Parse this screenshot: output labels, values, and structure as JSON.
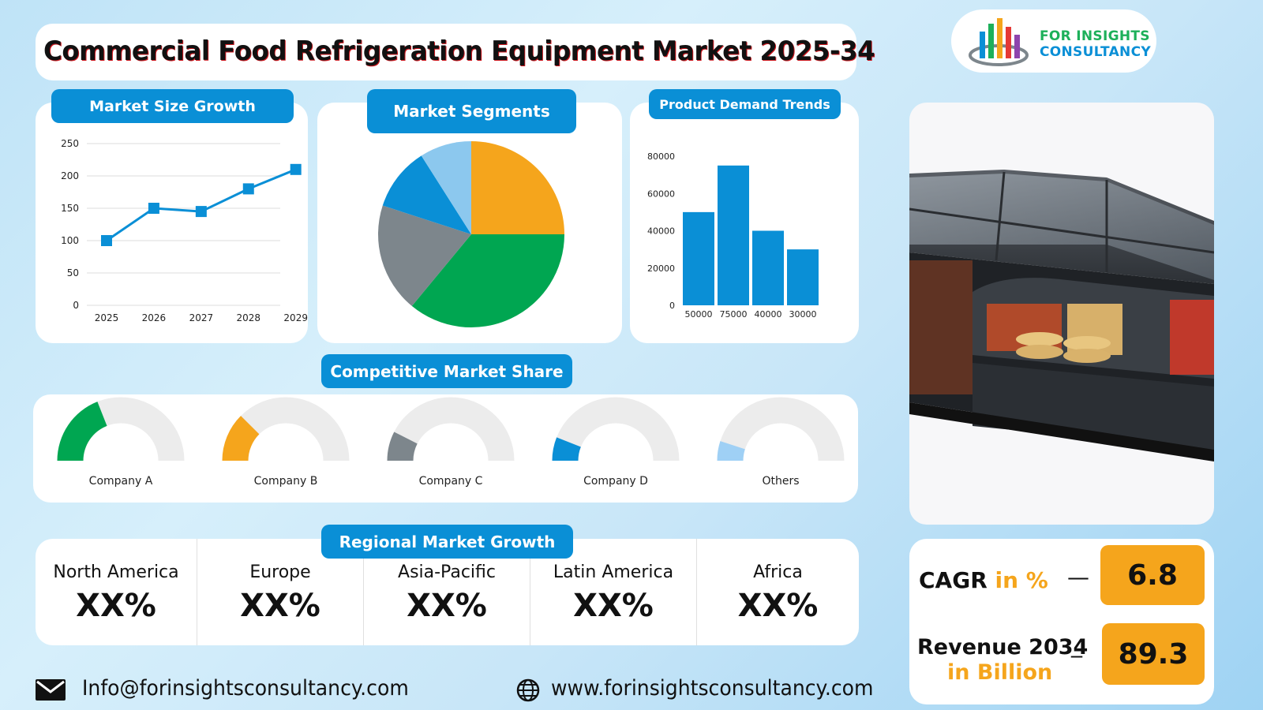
{
  "header": {
    "title": "Commercial Food Refrigeration Equipment Market 2025-34"
  },
  "logo": {
    "line1": "FOR INSIGHTS",
    "line2": "CONSULTANCY",
    "bar_colors": [
      "#0a8fd6",
      "#1db05a",
      "#f5a51c",
      "#e53935",
      "#8e44ad"
    ]
  },
  "panels": {
    "market_size": "Market Size Growth",
    "segments": "Market Segments",
    "demand": "Product Demand Trends",
    "share": "Competitive Market Share",
    "regional": "Regional Market Growth"
  },
  "colors": {
    "accent": "#0a8fd6",
    "orange": "#f5a51c",
    "green": "#00a651",
    "grey": "#7d868c",
    "blue": "#0a8fd6",
    "lightblue": "#8cc8ee",
    "track": "#ececec"
  },
  "chart_data": [
    {
      "type": "line",
      "x": [
        "2025",
        "2026",
        "2027",
        "2028",
        "2029"
      ],
      "values": [
        100,
        150,
        145,
        180,
        210
      ],
      "ylim": [
        0,
        250
      ],
      "yticks": [
        "0",
        "50",
        "100",
        "150",
        "200",
        "250"
      ],
      "color": "#0a8fd6",
      "grid": true
    },
    {
      "type": "pie",
      "slices": [
        {
          "value": 25,
          "color": "#f5a51c"
        },
        {
          "value": 36,
          "color": "#00a651"
        },
        {
          "value": 19,
          "color": "#7d868c"
        },
        {
          "value": 11,
          "color": "#0a8fd6"
        },
        {
          "value": 9,
          "color": "#8cc8ee"
        }
      ]
    },
    {
      "type": "bar",
      "categories": [
        "50000",
        "75000",
        "40000",
        "30000"
      ],
      "values": [
        50000,
        75000,
        40000,
        30000
      ],
      "ylim": [
        0,
        80000
      ],
      "yticks": [
        "0",
        "20000",
        "40000",
        "60000",
        "80000"
      ],
      "color": "#0a8fd6"
    }
  ],
  "share": {
    "companies": [
      {
        "name": "Company A",
        "share": 0.38,
        "color": "#00a651"
      },
      {
        "name": "Company B",
        "share": 0.25,
        "color": "#f5a51c"
      },
      {
        "name": "Company C",
        "share": 0.15,
        "color": "#7d868c"
      },
      {
        "name": "Company D",
        "share": 0.12,
        "color": "#0a8fd6"
      },
      {
        "name": "Others",
        "share": 0.1,
        "color": "#9fd0f5"
      }
    ]
  },
  "regions": [
    {
      "name": "North America",
      "value": "XX%"
    },
    {
      "name": "Europe",
      "value": "XX%"
    },
    {
      "name": "Asia-Pacific",
      "value": "XX%"
    },
    {
      "name": "Latin America",
      "value": "XX%"
    },
    {
      "name": "Africa",
      "value": "XX%"
    }
  ],
  "kpi": {
    "cagr_label": "CAGR",
    "cagr_unit": "in %",
    "cagr_dash": "—",
    "cagr_value": "6.8",
    "revenue_label": "Revenue 2034",
    "revenue_unit": "in Billion",
    "revenue_dash": "_",
    "revenue_value": "89.3"
  },
  "footer": {
    "email": "Info@forinsightsconsultancy.com",
    "website": "www.forinsightsconsultancy.com"
  }
}
